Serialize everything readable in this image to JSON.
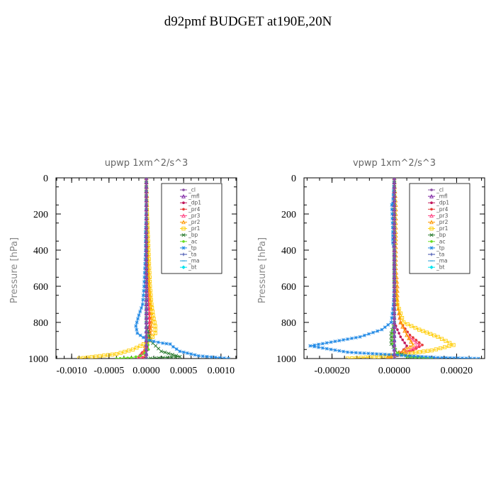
{
  "page": {
    "title": "d92pmf  BUDGET at190E,20N"
  },
  "chart_data": [
    {
      "type": "line",
      "title": "upwp   1xm^2/s^3",
      "ylabel": "Pressure [hPa]",
      "xlabel": "",
      "xlim": [
        -0.00121,
        0.00121
      ],
      "ylim": [
        1000,
        0
      ],
      "x_ticks": [
        "-0.0010",
        "-0.0005",
        "0.0000",
        "0.0005",
        "0.0010"
      ],
      "x_tick_values": [
        -0.001,
        -0.0005,
        0,
        0.0005,
        0.001
      ],
      "y_ticks": [
        "0",
        "200",
        "400",
        "600",
        "800",
        "1000"
      ],
      "y_tick_values": [
        0,
        200,
        400,
        600,
        800,
        1000
      ],
      "grid": false,
      "legend_position": "top-right",
      "series": [
        {
          "name": "_cl",
          "color": "#8a4fa3",
          "marker": "dot",
          "x": [
            0,
            0,
            0,
            0,
            0,
            0,
            0,
            0,
            0,
            0,
            0
          ],
          "y": [
            0,
            100,
            200,
            300,
            400,
            500,
            600,
            700,
            800,
            900,
            1000
          ]
        },
        {
          "name": "_mfl",
          "color": "#7b1fa2",
          "marker": "tri",
          "x": [
            0,
            0,
            0,
            0,
            0,
            0,
            0,
            0,
            0,
            0,
            0
          ],
          "y": [
            0,
            100,
            200,
            300,
            400,
            500,
            600,
            700,
            800,
            900,
            1000
          ]
        },
        {
          "name": "_dp1",
          "color": "#c2185b",
          "marker": "dot",
          "x": [
            0,
            0,
            0,
            0,
            0,
            1e-05,
            2e-05,
            3e-05,
            4e-05,
            3e-05,
            -2e-05,
            -8e-05,
            -3e-05,
            0
          ],
          "y": [
            0,
            100,
            200,
            300,
            400,
            500,
            600,
            700,
            800,
            900,
            950,
            980,
            995,
            1000
          ]
        },
        {
          "name": "_pr4",
          "color": "#e53935",
          "marker": "dot",
          "x": [
            0,
            0,
            0,
            1e-05,
            1e-05,
            2e-05,
            3e-05,
            4e-05,
            5e-05,
            4e-05,
            1e-05,
            -6e-05,
            -0.0001,
            0
          ],
          "y": [
            0,
            100,
            200,
            300,
            400,
            500,
            600,
            700,
            800,
            880,
            940,
            970,
            990,
            1000
          ]
        },
        {
          "name": "_pr3",
          "color": "#ff4081",
          "marker": "tri",
          "x": [
            0,
            0,
            0,
            0,
            1e-05,
            1e-05,
            2e-05,
            3e-05,
            4e-05,
            3e-05,
            0,
            -5e-05,
            -0.0001,
            0
          ],
          "y": [
            0,
            100,
            200,
            300,
            400,
            500,
            600,
            700,
            800,
            880,
            940,
            970,
            990,
            1000
          ]
        },
        {
          "name": "_pr2",
          "color": "#ff9800",
          "marker": "tri",
          "x": [
            0,
            1e-05,
            1e-05,
            2e-05,
            2e-05,
            3e-05,
            4e-05,
            6e-05,
            7e-05,
            6e-05,
            3e-05,
            -2e-05,
            -3e-05,
            0
          ],
          "y": [
            0,
            100,
            200,
            300,
            400,
            500,
            600,
            700,
            800,
            860,
            900,
            930,
            960,
            1000
          ]
        },
        {
          "name": "_pr1",
          "color": "#ffcc00",
          "marker": "square",
          "x": [
            0,
            0,
            1e-05,
            2e-05,
            3e-05,
            4e-05,
            5e-05,
            7e-05,
            9e-05,
            0.00012,
            0.00012,
            5e-05,
            -8e-05,
            -0.00018,
            -0.0004,
            -0.0009
          ],
          "y": [
            0,
            100,
            200,
            300,
            400,
            500,
            600,
            700,
            760,
            820,
            860,
            900,
            930,
            950,
            975,
            1000
          ]
        },
        {
          "name": "_bp",
          "color": "#2e7d32",
          "marker": "cross",
          "x": [
            0,
            0,
            0,
            0,
            0,
            0,
            0,
            0,
            0,
            5e-05,
            0.0002,
            0.00045,
            0
          ],
          "y": [
            0,
            100,
            200,
            300,
            400,
            500,
            600,
            700,
            800,
            900,
            960,
            990,
            1000
          ]
        },
        {
          "name": "_ac",
          "color": "#66dd22",
          "marker": "dot",
          "x": [
            0,
            0,
            0,
            0,
            0,
            0,
            0,
            0,
            0,
            2e-05,
            3e-05,
            -2e-05,
            -8e-05,
            -0.0002,
            -0.0004
          ],
          "y": [
            0,
            100,
            200,
            300,
            400,
            500,
            600,
            700,
            800,
            900,
            950,
            970,
            985,
            995,
            1000
          ]
        },
        {
          "name": "_tp",
          "color": "#1e88e5",
          "marker": "star",
          "x": [
            0,
            0,
            0,
            -1e-05,
            -1e-05,
            -2e-05,
            -3e-05,
            -5e-05,
            -0.0001,
            -0.00014,
            -0.00012,
            0,
            0.0001,
            0.00022,
            0.00032,
            0.00036,
            0.00045,
            0.0007,
            0.0011
          ],
          "y": [
            0,
            100,
            200,
            300,
            400,
            500,
            600,
            700,
            760,
            820,
            860,
            895,
            905,
            915,
            920,
            935,
            960,
            985,
            1000
          ]
        },
        {
          "name": "_ta",
          "color": "#3949ab",
          "marker": "plus",
          "x": [
            0,
            0,
            0,
            0,
            0,
            0,
            0,
            0,
            0,
            0,
            0
          ],
          "y": [
            0,
            100,
            200,
            300,
            400,
            500,
            600,
            700,
            800,
            900,
            1000
          ]
        },
        {
          "name": "_ma",
          "color": "#26a0da",
          "marker": "dash",
          "x": [
            0,
            0,
            0,
            0,
            0,
            0,
            0,
            0,
            0,
            0,
            0
          ],
          "y": [
            0,
            100,
            200,
            300,
            400,
            500,
            600,
            700,
            800,
            900,
            1000
          ]
        },
        {
          "name": "_bt",
          "color": "#00e5ee",
          "marker": "diamond",
          "x": [
            0,
            0,
            0,
            0,
            0,
            0,
            0,
            0,
            0,
            0,
            0
          ],
          "y": [
            0,
            100,
            200,
            300,
            400,
            500,
            600,
            700,
            800,
            900,
            1000
          ]
        }
      ]
    },
    {
      "type": "line",
      "title": "vpwp   1xm^2/s^3",
      "ylabel": "Pressure [hPa]",
      "xlabel": "",
      "xlim": [
        -0.00029,
        0.00029
      ],
      "ylim": [
        1000,
        0
      ],
      "x_ticks": [
        "-0.00020",
        "0.00000",
        "0.00020"
      ],
      "x_tick_values": [
        -0.0002,
        0,
        0.0002
      ],
      "y_ticks": [
        "0",
        "200",
        "400",
        "600",
        "800",
        "1000"
      ],
      "y_tick_values": [
        0,
        200,
        400,
        600,
        800,
        1000
      ],
      "grid": false,
      "legend_position": "top-right",
      "series": [
        {
          "name": "_cl",
          "color": "#8a4fa3",
          "marker": "dot",
          "x": [
            0,
            0,
            0,
            0,
            0,
            0,
            0,
            0,
            0,
            0,
            0
          ],
          "y": [
            0,
            100,
            200,
            300,
            400,
            500,
            600,
            700,
            800,
            900,
            1000
          ]
        },
        {
          "name": "_mfl",
          "color": "#7b1fa2",
          "marker": "tri",
          "x": [
            0,
            0,
            0,
            0,
            0,
            0,
            0,
            0,
            0,
            0,
            0
          ],
          "y": [
            0,
            100,
            200,
            300,
            400,
            500,
            600,
            700,
            800,
            900,
            1000
          ]
        },
        {
          "name": "_dp1",
          "color": "#c2185b",
          "marker": "dot",
          "x": [
            0,
            0,
            0,
            0,
            0,
            0,
            0,
            0,
            0,
            2e-05,
            4e-05,
            2e-05,
            0
          ],
          "y": [
            0,
            100,
            200,
            300,
            400,
            500,
            600,
            700,
            800,
            880,
            930,
            970,
            1000
          ]
        },
        {
          "name": "_pr4",
          "color": "#e53935",
          "marker": "dot",
          "x": [
            0,
            0,
            0,
            0,
            0,
            0,
            5e-06,
            1e-05,
            2e-05,
            5e-05,
            9e-05,
            6e-05,
            1e-05,
            -2e-05,
            0
          ],
          "y": [
            0,
            100,
            200,
            300,
            400,
            500,
            600,
            700,
            800,
            870,
            925,
            955,
            975,
            990,
            1000
          ]
        },
        {
          "name": "_pr3",
          "color": "#ff4081",
          "marker": "tri",
          "x": [
            0,
            0,
            0,
            0,
            0,
            0,
            0,
            1e-05,
            2e-05,
            4e-05,
            8e-05,
            5e-05,
            0,
            -2e-05,
            0
          ],
          "y": [
            0,
            100,
            200,
            300,
            400,
            500,
            600,
            700,
            800,
            870,
            925,
            955,
            975,
            990,
            1000
          ]
        },
        {
          "name": "_pr2",
          "color": "#ff9800",
          "marker": "tri",
          "x": [
            0,
            5e-06,
            5e-06,
            5e-06,
            5e-06,
            5e-06,
            1e-05,
            1e-05,
            2e-05,
            4e-05,
            6e-05,
            3e-05,
            0,
            -2e-05,
            0
          ],
          "y": [
            0,
            150,
            200,
            300,
            360,
            500,
            600,
            700,
            800,
            870,
            925,
            955,
            975,
            990,
            1000
          ]
        },
        {
          "name": "_pr1",
          "color": "#ffcc00",
          "marker": "square",
          "x": [
            0,
            0,
            0,
            0,
            0,
            0,
            0,
            1e-05,
            3e-05,
            8e-05,
            0.00014,
            0.00019,
            0.00012,
            3e-05,
            -5e-05,
            -0.00015
          ],
          "y": [
            0,
            100,
            200,
            300,
            400,
            500,
            600,
            700,
            800,
            840,
            880,
            925,
            955,
            975,
            990,
            1000
          ]
        },
        {
          "name": "_bp",
          "color": "#2e7d32",
          "marker": "cross",
          "x": [
            0,
            0,
            0,
            0,
            0,
            0,
            0,
            0,
            0,
            -1e-05,
            -1e-05,
            1e-05,
            5e-05,
            0.0001
          ],
          "y": [
            0,
            100,
            200,
            300,
            400,
            500,
            600,
            700,
            800,
            860,
            920,
            970,
            990,
            1000
          ]
        },
        {
          "name": "_ac",
          "color": "#66dd22",
          "marker": "dot",
          "x": [
            0,
            0,
            0,
            0,
            0,
            0,
            0,
            0,
            0,
            -5e-06,
            -5e-06,
            1e-05,
            4e-05,
            0.00012
          ],
          "y": [
            0,
            100,
            200,
            300,
            400,
            500,
            600,
            700,
            800,
            860,
            920,
            970,
            990,
            1000
          ]
        },
        {
          "name": "_tp",
          "color": "#1e88e5",
          "marker": "star",
          "x": [
            0,
            -5e-06,
            -8e-06,
            -5e-06,
            -5e-06,
            0,
            0,
            -3e-06,
            -1e-05,
            -4e-05,
            -0.00011,
            -0.00027,
            -0.00015,
            5e-05,
            0.00014,
            0.00027
          ],
          "y": [
            0,
            140,
            150,
            300,
            360,
            400,
            600,
            700,
            800,
            840,
            880,
            930,
            965,
            985,
            995,
            1000
          ]
        },
        {
          "name": "_ta",
          "color": "#3949ab",
          "marker": "plus",
          "x": [
            0,
            0,
            0,
            0,
            0,
            0,
            0,
            0,
            0,
            0,
            0
          ],
          "y": [
            0,
            100,
            200,
            300,
            400,
            500,
            600,
            700,
            800,
            900,
            1000
          ]
        },
        {
          "name": "_ma",
          "color": "#26a0da",
          "marker": "dash",
          "x": [
            0,
            0,
            0,
            0,
            0,
            0,
            0,
            0,
            0,
            0,
            0
          ],
          "y": [
            0,
            100,
            200,
            300,
            400,
            500,
            600,
            700,
            800,
            900,
            1000
          ]
        },
        {
          "name": "_bt",
          "color": "#00e5ee",
          "marker": "diamond",
          "x": [
            0,
            0,
            0,
            0,
            0,
            0,
            0,
            0,
            0,
            0,
            0
          ],
          "y": [
            0,
            100,
            200,
            300,
            400,
            500,
            600,
            700,
            800,
            900,
            1000
          ]
        }
      ]
    }
  ]
}
